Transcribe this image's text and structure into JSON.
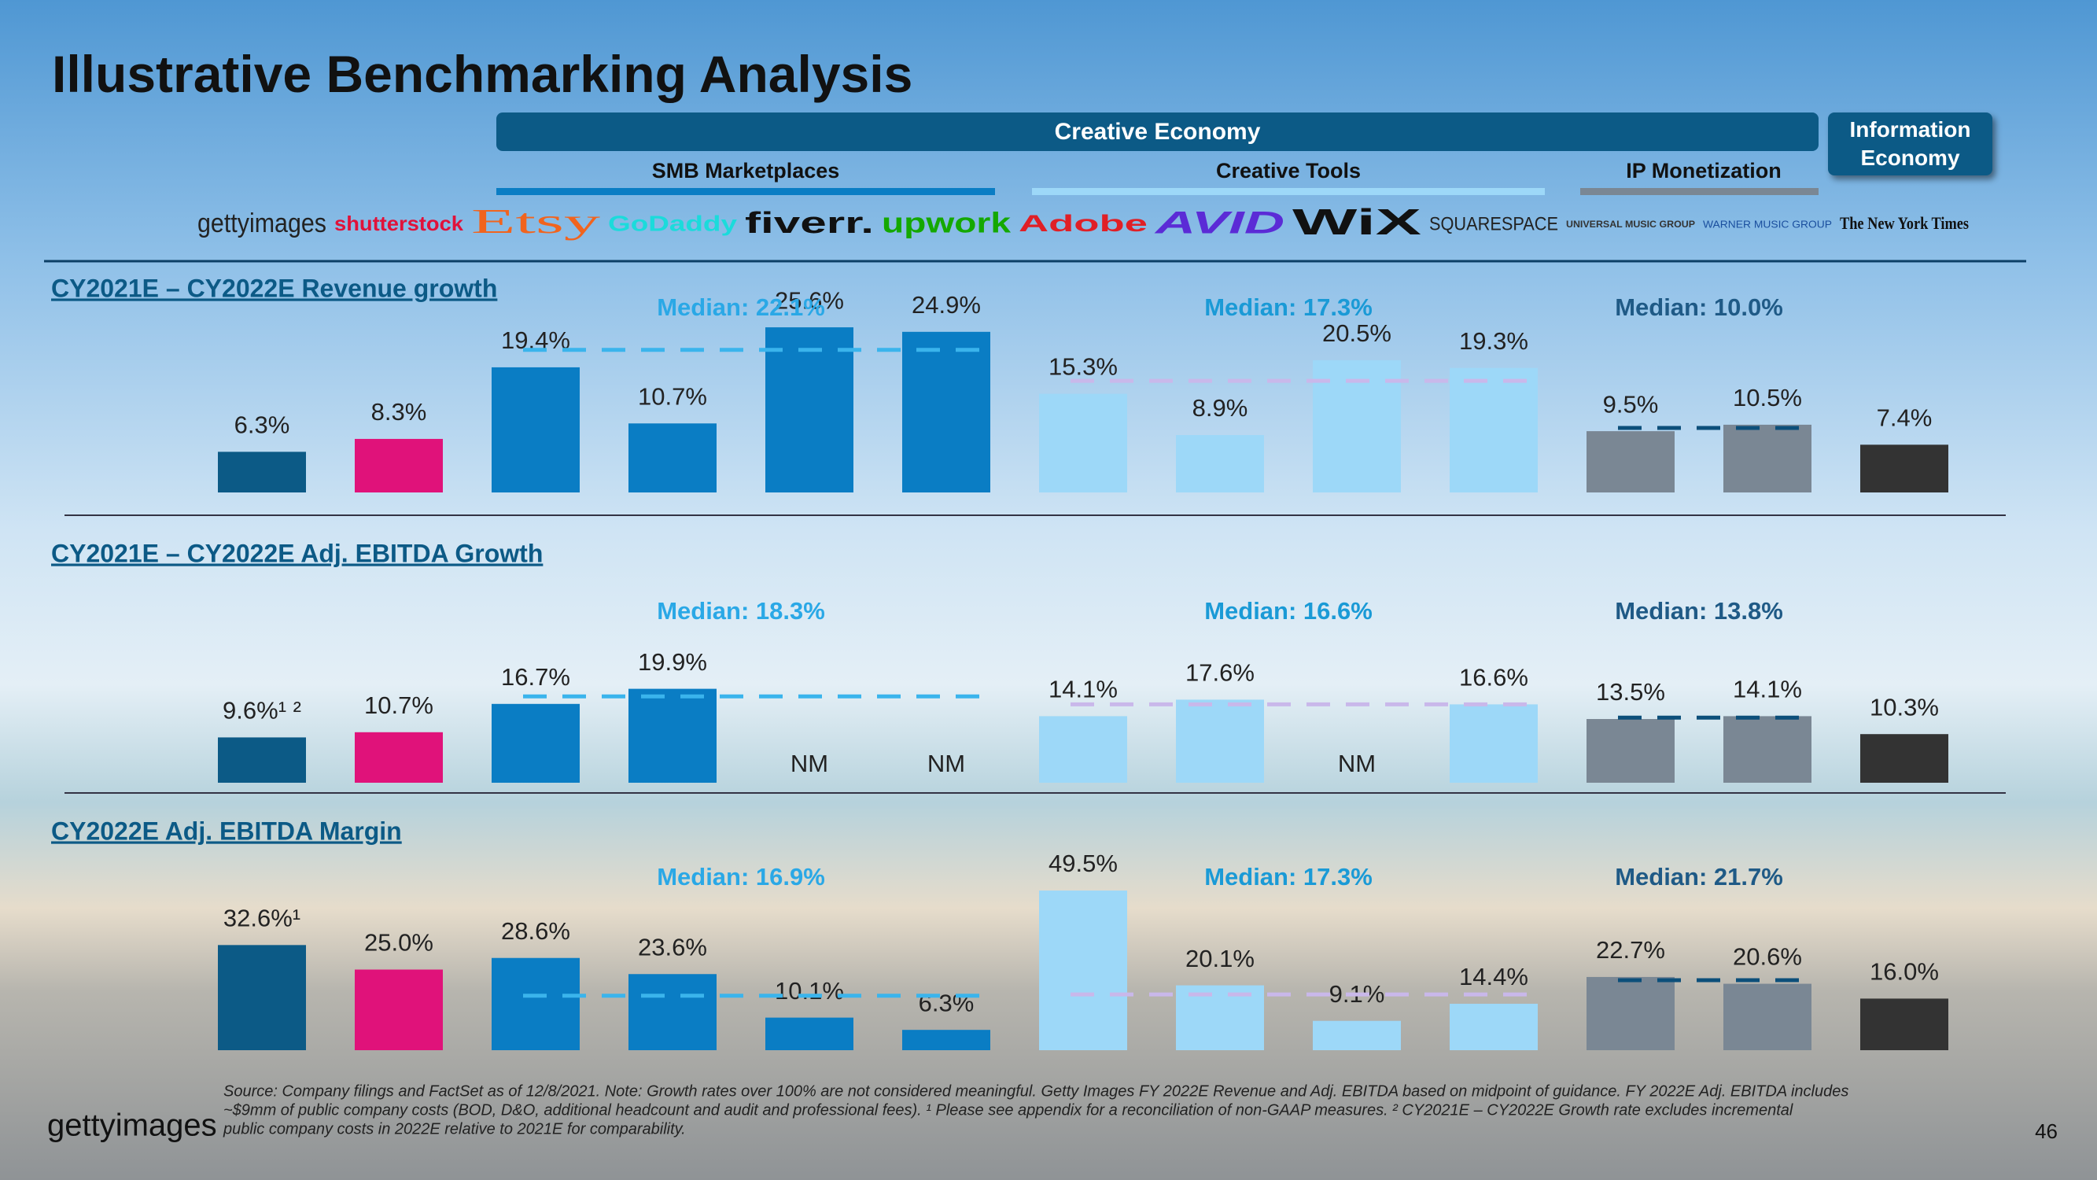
{
  "title": "Illustrative Benchmarking Analysis",
  "header": {
    "economy": "Creative Economy",
    "information": "Information Economy",
    "groups": [
      "SMB Marketplaces",
      "Creative Tools",
      "IP Monetization"
    ]
  },
  "footer": {
    "logo": "gettyimages",
    "source": [
      "Source: Company filings and FactSet as of 12/8/2021. Note: Growth rates over 100% are not considered meaningful. Getty Images FY 2022E Revenue and Adj. EBITDA based on midpoint of guidance. FY 2022E Adj. EBITDA includes",
      "~$9mm of public company costs (BOD, D&O, additional headcount and audit and professional fees). ¹ Please see appendix for a reconciliation of non-GAAP measures. ² CY2021E – CY2022E Growth rate excludes incremental",
      "public company costs in 2022E relative to 2021E for comparability."
    ],
    "page": "46"
  },
  "chart_data": [
    {
      "type": "bar",
      "title": "CY2021E – CY2022E Revenue growth",
      "categories": [
        "gettyimages",
        "shutterstock",
        "Etsy",
        "GoDaddy",
        "fiverr.",
        "upwork",
        "Adobe",
        "AVID",
        "WiX",
        "SQUARESPACE",
        "UNIVERSAL MUSIC GROUP",
        "WARNER MUSIC GROUP",
        "The New York Times"
      ],
      "values": [
        6.3,
        8.3,
        19.4,
        10.7,
        25.6,
        24.9,
        15.3,
        8.9,
        20.5,
        19.3,
        9.5,
        10.5,
        7.4
      ],
      "value_labels": [
        "6.3%",
        "8.3%",
        "19.4%",
        "10.7%",
        "25.6%",
        "24.9%",
        "15.3%",
        "8.9%",
        "20.5%",
        "19.3%",
        "9.5%",
        "10.5%",
        "7.4%"
      ],
      "colors": [
        "#0c5a86",
        "#e0127a",
        "#0a7dc4",
        "#0a7dc4",
        "#0a7dc4",
        "#0a7dc4",
        "#9dd8f8",
        "#9dd8f8",
        "#9dd8f8",
        "#9dd8f8",
        "#7a8794",
        "#7a8794",
        "#333333"
      ],
      "ylim": [
        0,
        30
      ],
      "medians": [
        {
          "label": "Median: 22.1%",
          "value": 22.1,
          "color": "#2aa8e6"
        },
        {
          "label": "Median: 17.3%",
          "value": 17.3,
          "color": "#1a9ad6"
        },
        {
          "label": "Median: 10.0%",
          "value": 10.0,
          "color": "#1f5a86"
        }
      ]
    },
    {
      "type": "bar",
      "title": "CY2021E – CY2022E Adj. EBITDA Growth",
      "values": [
        9.6,
        10.7,
        16.7,
        19.9,
        null,
        null,
        14.1,
        17.6,
        null,
        16.6,
        13.5,
        14.1,
        10.3
      ],
      "value_labels": [
        "9.6%¹ ²",
        "10.7%",
        "16.7%",
        "19.9%",
        "NM",
        "NM",
        "14.1%",
        "17.6%",
        "NM",
        "16.6%",
        "13.5%",
        "14.1%",
        "10.3%"
      ],
      "colors": [
        "#0c5a86",
        "#e0127a",
        "#0a7dc4",
        "#0a7dc4",
        "#0a7dc4",
        "#0a7dc4",
        "#9dd8f8",
        "#9dd8f8",
        "#9dd8f8",
        "#9dd8f8",
        "#7a8794",
        "#7a8794",
        "#333333"
      ],
      "ylim": [
        0,
        25
      ],
      "medians": [
        {
          "label": "Median: 18.3%",
          "value": 18.3,
          "color": "#2aa8e6"
        },
        {
          "label": "Median: 16.6%",
          "value": 16.6,
          "color": "#1a9ad6"
        },
        {
          "label": "Median: 13.8%",
          "value": 13.8,
          "color": "#1f5a86"
        }
      ]
    },
    {
      "type": "bar",
      "title": "CY2022E Adj. EBITDA Margin",
      "values": [
        32.6,
        25.0,
        28.6,
        23.6,
        10.1,
        6.3,
        49.5,
        20.1,
        9.1,
        14.4,
        22.7,
        20.6,
        16.0
      ],
      "value_labels": [
        "32.6%¹",
        "25.0%",
        "28.6%",
        "23.6%",
        "10.1%",
        "6.3%",
        "49.5%",
        "20.1%",
        "9.1%",
        "14.4%",
        "22.7%",
        "20.6%",
        "16.0%"
      ],
      "colors": [
        "#0c5a86",
        "#e0127a",
        "#0a7dc4",
        "#0a7dc4",
        "#0a7dc4",
        "#0a7dc4",
        "#9dd8f8",
        "#9dd8f8",
        "#9dd8f8",
        "#9dd8f8",
        "#7a8794",
        "#7a8794",
        "#333333"
      ],
      "ylim": [
        0,
        60
      ],
      "medians": [
        {
          "label": "Median: 16.9%",
          "value": 16.9,
          "color": "#2aa8e6"
        },
        {
          "label": "Median: 17.3%",
          "value": 17.3,
          "color": "#1a9ad6"
        },
        {
          "label": "Median: 21.7%",
          "value": 21.7,
          "color": "#1f5a86"
        }
      ]
    }
  ]
}
